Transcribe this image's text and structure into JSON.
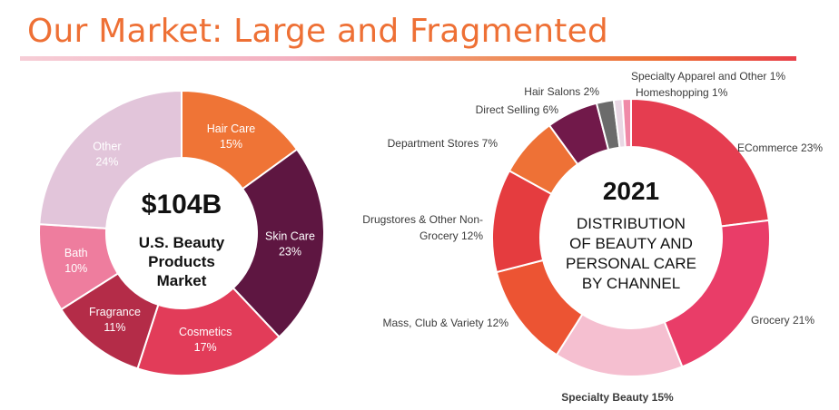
{
  "title": "Our Market: Large and Fragmented",
  "chart_data": [
    {
      "type": "pie",
      "variant": "donut",
      "center_value": "$104B",
      "center_lines": [
        "U.S. Beauty",
        "Products",
        "Market"
      ],
      "unit": "%",
      "slices": [
        {
          "label": "Hair Care",
          "value": 15,
          "color": "#ef7436"
        },
        {
          "label": "Skin Care",
          "value": 23,
          "color": "#5e1641"
        },
        {
          "label": "Cosmetics",
          "value": 17,
          "color": "#e23c59"
        },
        {
          "label": "Fragrance",
          "value": 11,
          "color": "#b42c48"
        },
        {
          "label": "Bath",
          "value": 10,
          "color": "#ee7d9e"
        },
        {
          "label": "Other",
          "value": 24,
          "color": "#e2c5da"
        }
      ]
    },
    {
      "type": "pie",
      "variant": "donut",
      "center_value": "2021",
      "center_lines": [
        "DISTRIBUTION",
        "OF BEAUTY AND",
        "PERSONAL CARE",
        "BY CHANNEL"
      ],
      "unit": "%",
      "slices": [
        {
          "label": "ECommerce",
          "value": 23,
          "color": "#e53d50"
        },
        {
          "label": "Grocery",
          "value": 21,
          "color": "#e93d68"
        },
        {
          "label": "Specialty Beauty",
          "value": 15,
          "color": "#f5bfd0"
        },
        {
          "label": "Mass, Club & Variety",
          "value": 12,
          "color": "#ec5433"
        },
        {
          "label": "Drugstores & Other Non-Grocery",
          "value": 12,
          "color": "#e53c3f"
        },
        {
          "label": "Department Stores",
          "value": 7,
          "color": "#ee7136"
        },
        {
          "label": "Direct Selling",
          "value": 6,
          "color": "#71194a"
        },
        {
          "label": "Hair Salons",
          "value": 2,
          "color": "#6b6b6b"
        },
        {
          "label": "Specialty Apparel and Other",
          "value": 1,
          "color": "#e9d7e4"
        },
        {
          "label": "Homeshopping",
          "value": 1,
          "color": "#f08aa8"
        }
      ],
      "label_lines": [
        [
          "Specialty Apparel and Other 1%"
        ],
        [
          "Hair Salons 2%"
        ],
        [
          "Homeshopping 1%"
        ],
        [
          "Direct Selling 6%"
        ],
        [
          "ECommerce 23%"
        ],
        [
          "Department Stores 7%"
        ],
        [
          "Drugstores & Other Non-",
          "Grocery 12%"
        ],
        [
          "Mass, Club & Variety  12%"
        ],
        [
          "Grocery 21%"
        ],
        [
          "Specialty Beauty 15%"
        ]
      ]
    }
  ]
}
